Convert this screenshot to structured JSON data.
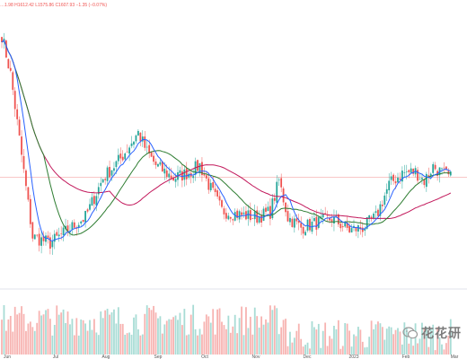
{
  "ohlc_text": "…1.98  H1612.42  L1575.86  C1607.93  −1.35 (−0.07%)",
  "watermark_text": "花花研",
  "watermark_icon": "wechat-icon",
  "colors": {
    "up": "#26a69a",
    "down": "#ef5350",
    "ma_fast": "#2962ff",
    "ma_mid": "#2e7d32",
    "ma_slow": "#c2185b",
    "hline": "#f4a6a6",
    "vol_up": "#a8dcd5",
    "vol_down": "#f7b3b1"
  },
  "chart_data": {
    "type": "candlestick",
    "title": "",
    "grid": false,
    "legend": "none",
    "x_tick_labels": [
      "Jun",
      "Jul",
      "Aug",
      "Sep",
      "Oct",
      "Nov",
      "Dec",
      "2023",
      "Feb",
      "Mar"
    ],
    "y_range_approx": [
      900,
      2900
    ],
    "horizontal_line_value": 1607,
    "waypoints": [
      {
        "t": 0,
        "price": 2700
      },
      {
        "t": 4,
        "price": 2400
      },
      {
        "t": 8,
        "price": 1900
      },
      {
        "t": 14,
        "price": 1150
      },
      {
        "t": 22,
        "price": 1100
      },
      {
        "t": 30,
        "price": 1200
      },
      {
        "t": 38,
        "price": 1300
      },
      {
        "t": 46,
        "price": 1600
      },
      {
        "t": 54,
        "price": 1750
      },
      {
        "t": 62,
        "price": 1950
      },
      {
        "t": 66,
        "price": 1800
      },
      {
        "t": 70,
        "price": 1700
      },
      {
        "t": 78,
        "price": 1600
      },
      {
        "t": 86,
        "price": 1650
      },
      {
        "t": 90,
        "price": 1700
      },
      {
        "t": 94,
        "price": 1550
      },
      {
        "t": 100,
        "price": 1350
      },
      {
        "t": 108,
        "price": 1320
      },
      {
        "t": 116,
        "price": 1300
      },
      {
        "t": 122,
        "price": 1340
      },
      {
        "t": 126,
        "price": 1580
      },
      {
        "t": 130,
        "price": 1300
      },
      {
        "t": 136,
        "price": 1220
      },
      {
        "t": 144,
        "price": 1260
      },
      {
        "t": 150,
        "price": 1290
      },
      {
        "t": 158,
        "price": 1200
      },
      {
        "t": 164,
        "price": 1220
      },
      {
        "t": 170,
        "price": 1300
      },
      {
        "t": 176,
        "price": 1550
      },
      {
        "t": 182,
        "price": 1640
      },
      {
        "t": 188,
        "price": 1650
      },
      {
        "t": 192,
        "price": 1580
      },
      {
        "t": 196,
        "price": 1690
      },
      {
        "t": 200,
        "price": 1640
      },
      {
        "t": 204,
        "price": 1600
      }
    ]
  }
}
